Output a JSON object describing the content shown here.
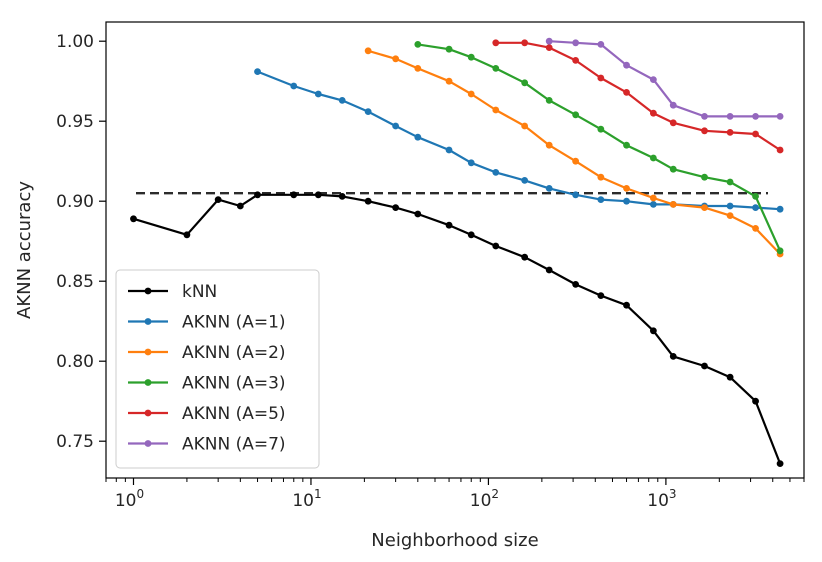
{
  "chart_data": {
    "type": "line",
    "xlabel": "Neighborhood size",
    "ylabel": "AKNN accuracy",
    "xscale": "log",
    "xlim": [
      0.7,
      6000
    ],
    "ylim": [
      0.727,
      1.012
    ],
    "grid": false,
    "legend_position": "lower-left",
    "x_ticks": [
      {
        "value": 1,
        "base": "10",
        "exp": "0"
      },
      {
        "value": 10,
        "base": "10",
        "exp": "1"
      },
      {
        "value": 100,
        "base": "10",
        "exp": "2"
      },
      {
        "value": 1000,
        "base": "10",
        "exp": "3"
      }
    ],
    "y_ticks": [
      {
        "value": 0.75,
        "label": "0.75"
      },
      {
        "value": 0.8,
        "label": "0.80"
      },
      {
        "value": 0.85,
        "label": "0.85"
      },
      {
        "value": 0.9,
        "label": "0.90"
      },
      {
        "value": 0.95,
        "label": "0.95"
      },
      {
        "value": 1.0,
        "label": "1.00"
      }
    ],
    "reference_line": {
      "y": 0.905,
      "style": "dashed",
      "color": "#2b2b2b"
    },
    "series": [
      {
        "name": "kNN",
        "color": "#000000",
        "x": [
          1,
          2,
          3,
          4,
          5,
          8,
          11,
          15,
          21,
          30,
          40,
          60,
          80,
          110,
          160,
          220,
          310,
          430,
          600,
          850,
          1100,
          1650,
          2300,
          3200,
          4400
        ],
        "y": [
          0.889,
          0.879,
          0.901,
          0.897,
          0.904,
          0.904,
          0.904,
          0.903,
          0.9,
          0.896,
          0.892,
          0.885,
          0.879,
          0.872,
          0.865,
          0.857,
          0.848,
          0.841,
          0.835,
          0.819,
          0.803,
          0.797,
          0.79,
          0.775,
          0.736
        ]
      },
      {
        "name": "AKNN (A=1)",
        "color": "#1f77b4",
        "x": [
          5,
          8,
          11,
          15,
          21,
          30,
          40,
          60,
          80,
          110,
          160,
          220,
          310,
          430,
          600,
          850,
          1100,
          1650,
          2300,
          3200,
          4400
        ],
        "y": [
          0.981,
          0.972,
          0.967,
          0.963,
          0.956,
          0.947,
          0.94,
          0.932,
          0.924,
          0.918,
          0.913,
          0.908,
          0.904,
          0.901,
          0.9,
          0.898,
          0.898,
          0.897,
          0.897,
          0.896,
          0.895
        ]
      },
      {
        "name": "AKNN (A=2)",
        "color": "#ff7f0e",
        "x": [
          21,
          30,
          40,
          60,
          80,
          110,
          160,
          220,
          310,
          430,
          600,
          850,
          1100,
          1650,
          2300,
          3200,
          4400
        ],
        "y": [
          0.994,
          0.989,
          0.983,
          0.975,
          0.967,
          0.957,
          0.947,
          0.935,
          0.925,
          0.915,
          0.908,
          0.902,
          0.898,
          0.896,
          0.891,
          0.883,
          0.867
        ]
      },
      {
        "name": "AKNN (A=3)",
        "color": "#2ca02c",
        "x": [
          40,
          60,
          80,
          110,
          160,
          220,
          310,
          430,
          600,
          850,
          1100,
          1650,
          2300,
          3200,
          4400
        ],
        "y": [
          0.998,
          0.995,
          0.99,
          0.983,
          0.974,
          0.963,
          0.954,
          0.945,
          0.935,
          0.927,
          0.92,
          0.915,
          0.912,
          0.903,
          0.869
        ]
      },
      {
        "name": "AKNN (A=5)",
        "color": "#d62728",
        "x": [
          110,
          160,
          220,
          310,
          430,
          600,
          850,
          1100,
          1650,
          2300,
          3200,
          4400
        ],
        "y": [
          0.999,
          0.999,
          0.996,
          0.988,
          0.977,
          0.968,
          0.955,
          0.949,
          0.944,
          0.943,
          0.942,
          0.932
        ]
      },
      {
        "name": "AKNN (A=7)",
        "color": "#9467bd",
        "x": [
          220,
          310,
          430,
          600,
          850,
          1100,
          1650,
          2300,
          3200,
          4400
        ],
        "y": [
          1.0,
          0.999,
          0.998,
          0.985,
          0.976,
          0.96,
          0.953,
          0.953,
          0.953,
          0.953
        ]
      }
    ]
  }
}
